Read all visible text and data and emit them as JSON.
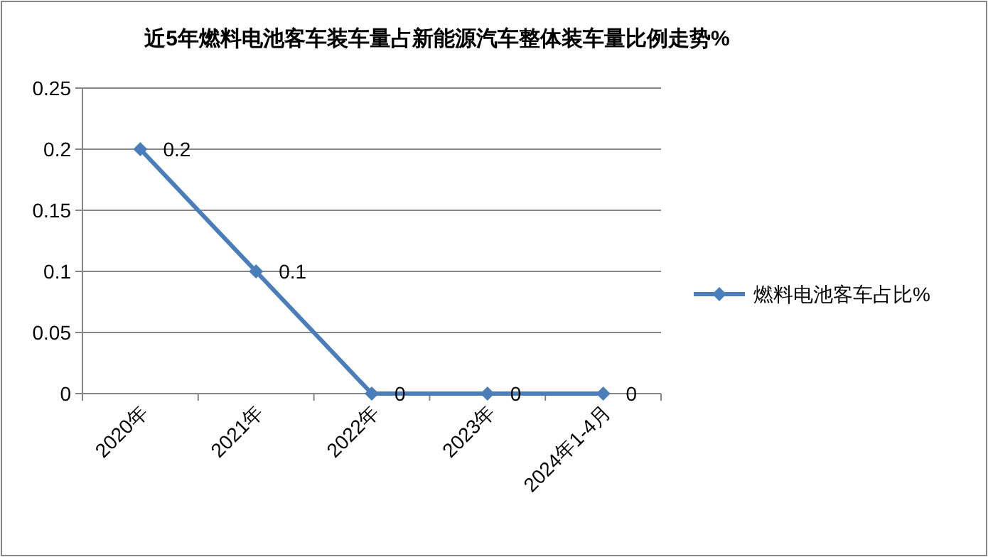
{
  "chart_data": {
    "type": "line",
    "title": "近5年燃料电池客车装车量占新能源汽车整体装车量比例走势%",
    "categories": [
      "2020年",
      "2021年",
      "2022年",
      "2023年",
      "2024年1-4月"
    ],
    "series": [
      {
        "name": "燃料电池客车占比%",
        "color": "#4a7ebb",
        "values": [
          0.2,
          0.1,
          0,
          0,
          0
        ]
      }
    ],
    "ylim": [
      0,
      0.25
    ],
    "yticks": [
      0,
      0.05,
      0.1,
      0.15,
      0.2,
      0.25
    ],
    "grid": "y",
    "legend": "right",
    "marker": "diamond",
    "line_style": "solid",
    "data_labels": true
  }
}
